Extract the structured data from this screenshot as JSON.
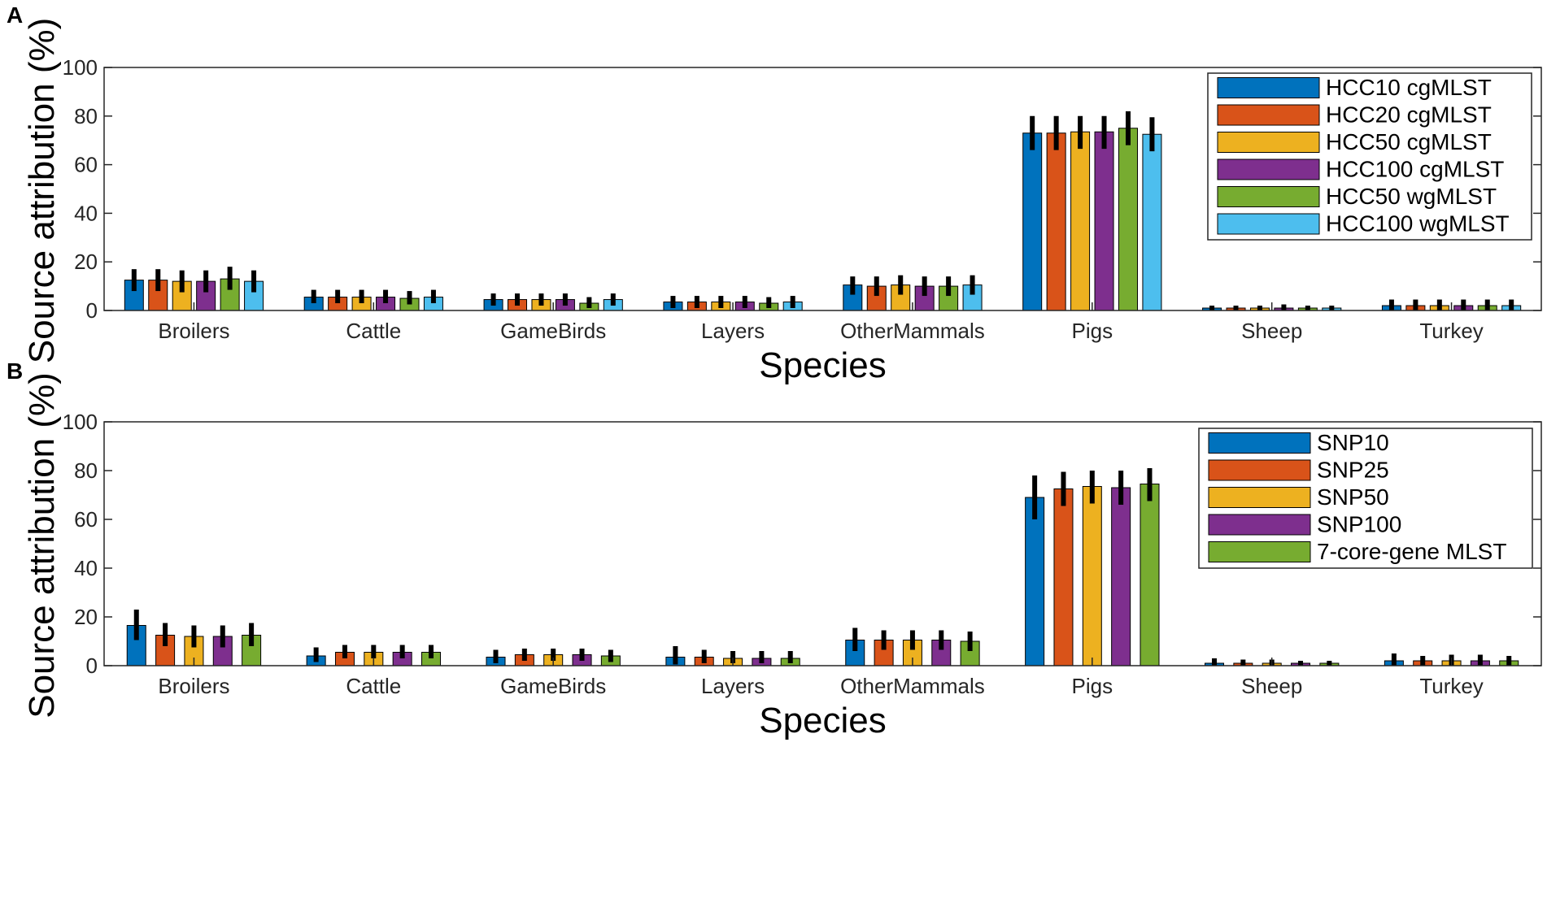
{
  "chart_data": [
    {
      "panel": "A",
      "type": "bar",
      "xlabel": "Species",
      "ylabel": "Source attribution (%)",
      "ylim": [
        0,
        100
      ],
      "yticks": [
        0,
        20,
        40,
        60,
        80,
        100
      ],
      "categories": [
        "Broilers",
        "Cattle",
        "GameBirds",
        "Layers",
        "OtherMammals",
        "Pigs",
        "Sheep",
        "Turkey"
      ],
      "legend_position": "top-right",
      "series": [
        {
          "name": "HCC10 cgMLST",
          "color": "#0072BD",
          "values": [
            12.5,
            5.5,
            4.5,
            3.5,
            10.5,
            73.0,
            1.0,
            2.0
          ],
          "err_low": [
            8,
            3,
            2,
            1,
            6.5,
            66,
            0,
            0
          ],
          "err_high": [
            17,
            8.5,
            7,
            6,
            14,
            80,
            2,
            4.5
          ]
        },
        {
          "name": "HCC20 cgMLST",
          "color": "#D95319",
          "values": [
            12.5,
            5.5,
            4.5,
            3.5,
            10.0,
            73.0,
            1.0,
            2.0
          ],
          "err_low": [
            8,
            3,
            2,
            1,
            6,
            66,
            0,
            0
          ],
          "err_high": [
            17,
            8.5,
            7,
            6,
            14,
            80,
            2,
            4.5
          ]
        },
        {
          "name": "HCC50 cgMLST",
          "color": "#EDB120",
          "values": [
            12.0,
            5.5,
            4.5,
            3.5,
            10.5,
            73.5,
            1.0,
            2.0
          ],
          "err_low": [
            7.5,
            3,
            2,
            1,
            6.5,
            66.5,
            0,
            0
          ],
          "err_high": [
            16.5,
            8.5,
            7,
            6,
            14.5,
            80,
            2,
            4.5
          ]
        },
        {
          "name": "HCC100 cgMLST",
          "color": "#7E2F8E",
          "values": [
            12.0,
            5.5,
            4.5,
            3.5,
            10.0,
            73.5,
            1.0,
            2.0
          ],
          "err_low": [
            7.5,
            3,
            2,
            1,
            6,
            66.5,
            0,
            0
          ],
          "err_high": [
            16.5,
            8.5,
            7,
            6,
            14,
            80,
            2.5,
            4.5
          ]
        },
        {
          "name": "HCC50 wgMLST",
          "color": "#77AC30",
          "values": [
            13.0,
            5.0,
            3.0,
            3.0,
            10.0,
            75.0,
            1.0,
            2.0
          ],
          "err_low": [
            8.5,
            2.5,
            1,
            1,
            6,
            68,
            0,
            0
          ],
          "err_high": [
            18,
            8,
            5.5,
            5.5,
            14,
            82,
            2,
            4.5
          ]
        },
        {
          "name": "HCC100 wgMLST",
          "color": "#4DBEEE",
          "values": [
            12.0,
            5.5,
            4.5,
            3.5,
            10.5,
            72.5,
            1.0,
            2.0
          ],
          "err_low": [
            7.5,
            3,
            2,
            1,
            6.5,
            65.5,
            0,
            0
          ],
          "err_high": [
            16.5,
            8.5,
            7,
            6,
            14.5,
            79.5,
            2,
            4.5
          ]
        }
      ]
    },
    {
      "panel": "B",
      "type": "bar",
      "xlabel": "Species",
      "ylabel": "Source attribution (%)",
      "ylim": [
        0,
        100
      ],
      "yticks": [
        0,
        20,
        40,
        60,
        80,
        100
      ],
      "categories": [
        "Broilers",
        "Cattle",
        "GameBirds",
        "Layers",
        "OtherMammals",
        "Pigs",
        "Sheep",
        "Turkey"
      ],
      "legend_position": "top-right",
      "series": [
        {
          "name": "SNP10",
          "color": "#0072BD",
          "values": [
            16.5,
            4.0,
            3.5,
            3.5,
            10.5,
            69.0,
            1.0,
            2.0
          ],
          "err_low": [
            10.5,
            1.5,
            1,
            0.5,
            6,
            60,
            0,
            0
          ],
          "err_high": [
            23,
            7.5,
            6.5,
            8,
            15.5,
            78,
            3,
            5
          ]
        },
        {
          "name": "SNP25",
          "color": "#D95319",
          "values": [
            12.5,
            5.5,
            4.5,
            3.5,
            10.5,
            72.5,
            1.0,
            2.0
          ],
          "err_low": [
            8,
            3,
            2,
            1,
            6.5,
            65.5,
            0,
            0
          ],
          "err_high": [
            17.5,
            8.5,
            7,
            6.5,
            14.5,
            79.5,
            2.5,
            4
          ]
        },
        {
          "name": "SNP50",
          "color": "#EDB120",
          "values": [
            12.0,
            5.5,
            4.5,
            3.0,
            10.5,
            73.5,
            1.0,
            2.0
          ],
          "err_low": [
            7.5,
            3,
            2,
            1,
            6.5,
            66.5,
            0,
            0
          ],
          "err_high": [
            16.5,
            8.5,
            7,
            6,
            14.5,
            80,
            2.5,
            4.5
          ]
        },
        {
          "name": "SNP100",
          "color": "#7E2F8E",
          "values": [
            12.0,
            5.5,
            4.5,
            3.0,
            10.5,
            73.0,
            1.0,
            2.0
          ],
          "err_low": [
            7.5,
            3,
            2,
            1,
            6.5,
            66,
            0,
            0
          ],
          "err_high": [
            16.5,
            8.5,
            7,
            6,
            14.5,
            80,
            2,
            4.5
          ]
        },
        {
          "name": "7-core-gene MLST",
          "color": "#77AC30",
          "values": [
            12.5,
            5.5,
            4.0,
            3.0,
            10.0,
            74.5,
            1.0,
            2.0
          ],
          "err_low": [
            8,
            3,
            1.5,
            1,
            6,
            67.5,
            0,
            0
          ],
          "err_high": [
            17.5,
            8.5,
            6.5,
            6,
            14,
            81,
            2,
            4
          ]
        }
      ]
    }
  ]
}
